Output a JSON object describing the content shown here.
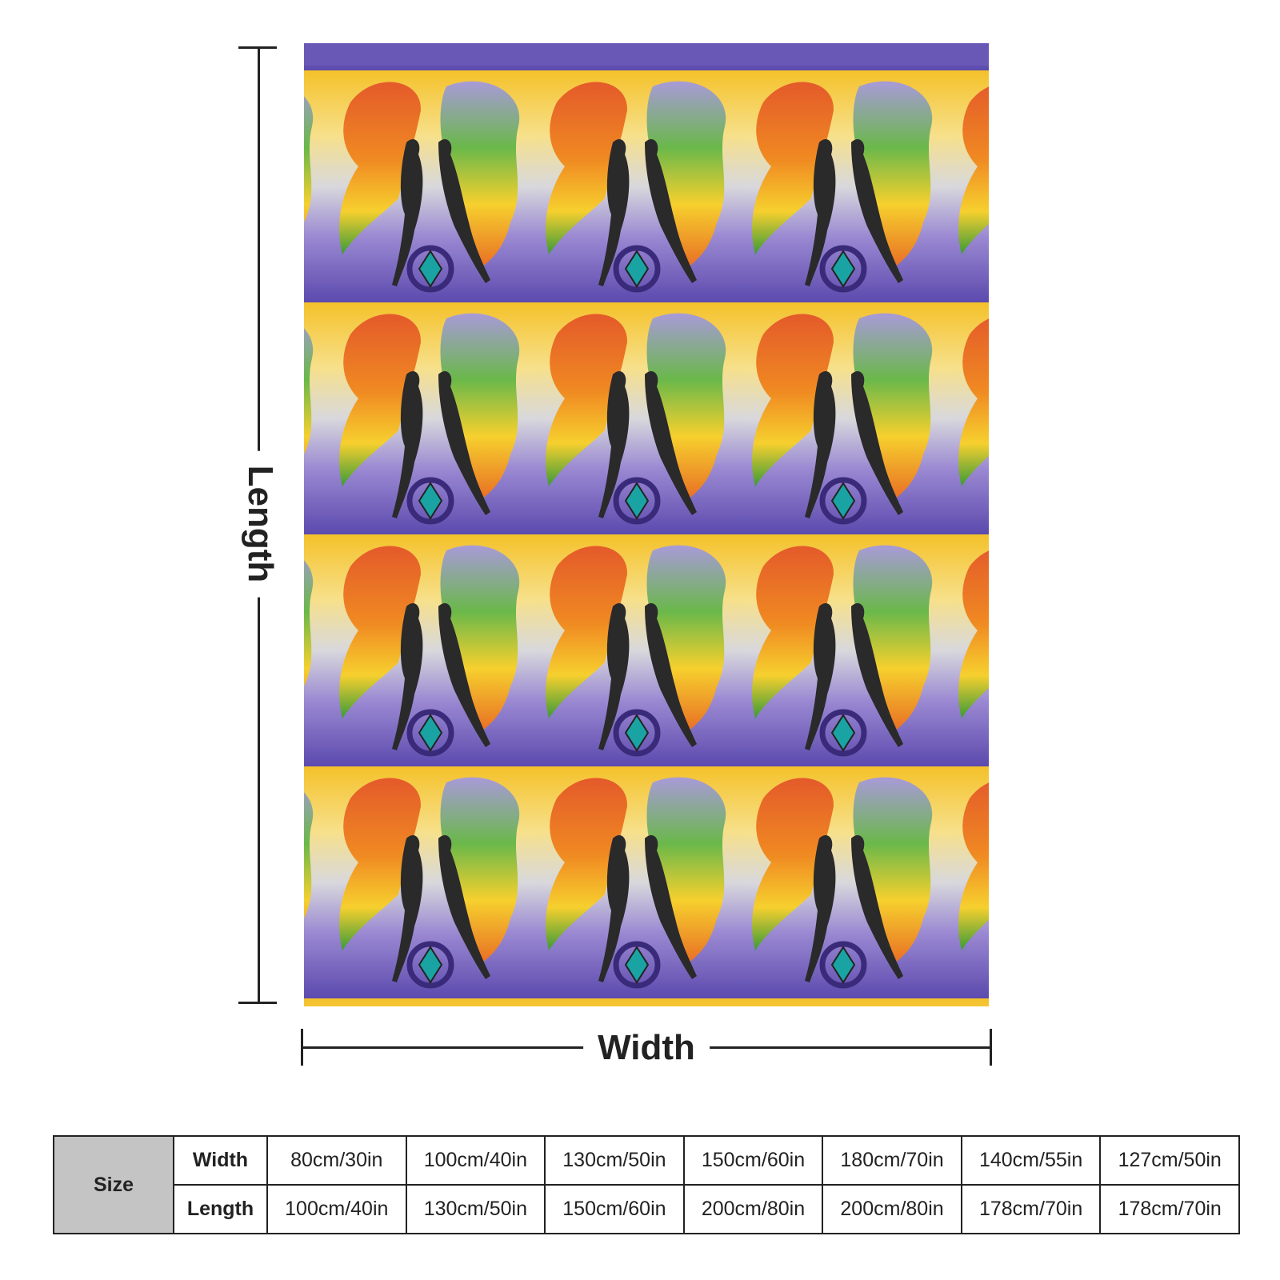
{
  "diagram": {
    "length_label": "Length",
    "width_label": "Width"
  },
  "size_table": {
    "header": "Size",
    "rows": [
      {
        "label": "Width",
        "values": [
          "80cm/30in",
          "100cm/40in",
          "130cm/50in",
          "150cm/60in",
          "180cm/70in",
          "140cm/55in",
          "127cm/50in"
        ]
      },
      {
        "label": "Length",
        "values": [
          "100cm/40in",
          "130cm/50in",
          "150cm/60in",
          "200cm/80in",
          "200cm/80in",
          "178cm/70in",
          "178cm/70in"
        ]
      }
    ]
  },
  "colors": {
    "purple": "#6a58b6",
    "gold": "#f2c12e",
    "teal": "#1aa3a3",
    "silhouette": "#2a2a2a"
  },
  "icons": {
    "blanket": "blanket-pattern-image"
  }
}
